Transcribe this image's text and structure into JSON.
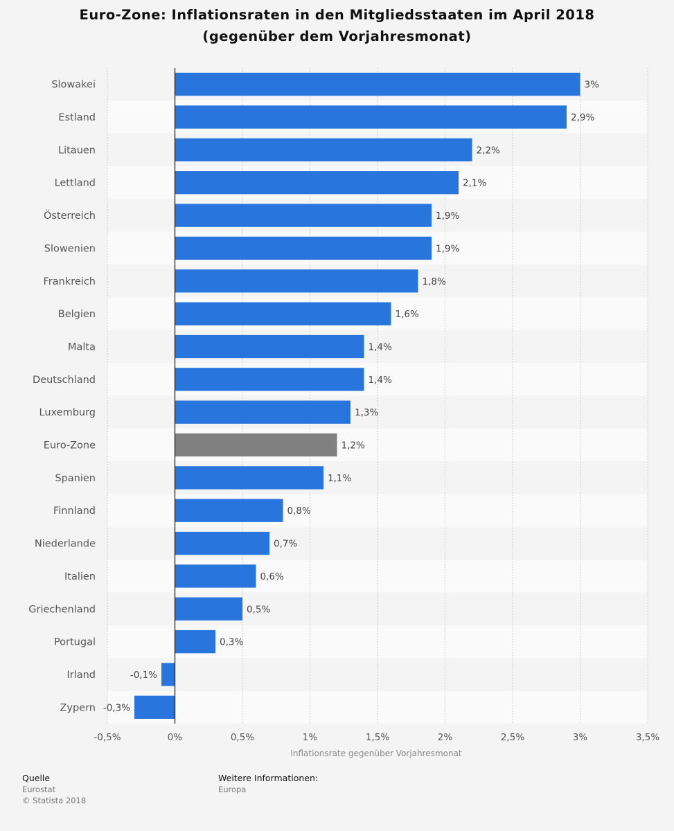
{
  "chart_data": {
    "type": "bar",
    "orientation": "horizontal",
    "title_line1": "Euro-Zone: Inflationsraten in den Mitgliedsstaaten im April 2018",
    "title_line2": "(gegenüber dem Vorjahresmonat)",
    "categories": [
      "Slowakei",
      "Estland",
      "Litauen",
      "Lettland",
      "Österreich",
      "Slowenien",
      "Frankreich",
      "Belgien",
      "Malta",
      "Deutschland",
      "Luxemburg",
      "Euro-Zone",
      "Spanien",
      "Finnland",
      "Niederlande",
      "Italien",
      "Griechenland",
      "Portugal",
      "Irland",
      "Zypern"
    ],
    "values": [
      3,
      2.9,
      2.2,
      2.1,
      1.9,
      1.9,
      1.8,
      1.6,
      1.4,
      1.4,
      1.3,
      1.2,
      1.1,
      0.8,
      0.7,
      0.6,
      0.5,
      0.3,
      -0.1,
      -0.3
    ],
    "value_labels": [
      "3%",
      "2,9%",
      "2,2%",
      "2,1%",
      "1,9%",
      "1,9%",
      "1,8%",
      "1,6%",
      "1,4%",
      "1,4%",
      "1,3%",
      "1,2%",
      "1,1%",
      "0,8%",
      "0,7%",
      "0,6%",
      "0,5%",
      "0,3%",
      "-0,1%",
      "-0,3%"
    ],
    "highlight_category": "Euro-Zone",
    "xlabel": "Inflationsrate gegenüber Vorjahresmonat",
    "xlim": [
      -0.5,
      3.5
    ],
    "x_ticks": [
      -0.5,
      0,
      0.5,
      1,
      1.5,
      2,
      2.5,
      3,
      3.5
    ],
    "x_tick_labels": [
      "-0,5%",
      "0%",
      "0,5%",
      "1%",
      "1,5%",
      "2%",
      "2,5%",
      "3%",
      "3,5%"
    ],
    "colors": {
      "bar": "#2876dd",
      "highlight": "#808080",
      "zero_line": "#222222",
      "grid": "#cccccc"
    }
  },
  "footer": {
    "source_heading": "Quelle",
    "source_name": "Eurostat",
    "copyright": "© Statista 2018",
    "info_heading": "Weitere Informationen:",
    "info_region": "Europa"
  }
}
